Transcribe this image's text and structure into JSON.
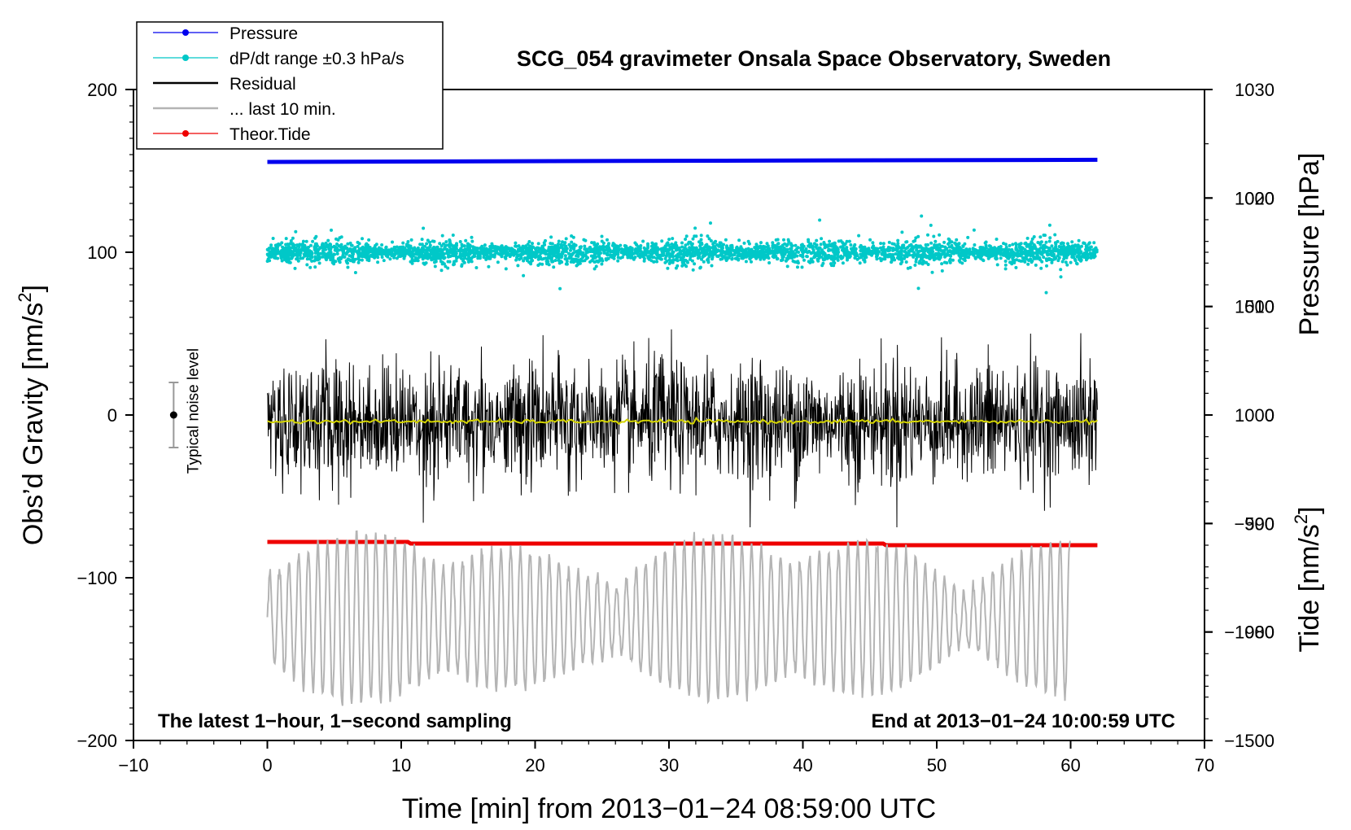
{
  "chart_data": {
    "type": "line",
    "title": "SCG_054 gravimeter Onsala Space Observatory, Sweden",
    "xlabel": "Time [min] from 2013−01−24 08:59:00 UTC",
    "ylabel_left_main": "Obs’d Gravity [nm/s",
    "ylabel_left_sup": "2",
    "ylabel_left_end": "]",
    "ylabel_right_pressure": "Pressure [hPa]",
    "ylabel_right_tide_main": "Tide [nm/s",
    "ylabel_right_tide_sup": "2",
    "ylabel_right_tide_end": "]",
    "xlim": [
      -10,
      70
    ],
    "ylim": [
      -200,
      200
    ],
    "pressure_axis": {
      "range": [
        970,
        1030
      ],
      "ticks": [
        980,
        990,
        1000,
        1010,
        1020,
        1030
      ]
    },
    "tide_axis": {
      "range": [
        -1500,
        1500
      ],
      "ticks": [
        -1500,
        -1000,
        -500,
        0,
        500,
        1000
      ]
    },
    "x_ticks": [
      "−10",
      "0",
      "10",
      "20",
      "30",
      "40",
      "50",
      "60",
      "70"
    ],
    "x_tick_values": [
      -10,
      0,
      10,
      20,
      30,
      40,
      50,
      60,
      70
    ],
    "y_ticks": [
      "200",
      "100",
      "0",
      "−100",
      "−200"
    ],
    "y_tick_values": [
      200,
      100,
      0,
      -100,
      -200
    ],
    "pressure_tick_labels": [
      "980",
      "990",
      "1000",
      "1010",
      "1020",
      "1030"
    ],
    "tide_tick_labels": [
      "−1500",
      "−1000",
      "−500",
      "0",
      "500",
      "1000"
    ],
    "legend": [
      {
        "label": "Pressure",
        "color": "#0000ee",
        "style": "line-dot"
      },
      {
        "label": "dP/dt range ±0.3 hPa/s",
        "color": "#00c8c8",
        "style": "line-dot"
      },
      {
        "label": "Residual",
        "color": "#000000",
        "style": "line"
      },
      {
        "label": "... last 10 min.",
        "color": "#b4b4b4",
        "style": "line"
      },
      {
        "label": "Theor.Tide",
        "color": "#ee0000",
        "style": "line-dot"
      }
    ],
    "series": [
      {
        "name": "Pressure",
        "axis": "left",
        "x_range": [
          0,
          62
        ],
        "values": [
          {
            "x": 0,
            "y": 155.5
          },
          {
            "x": 30,
            "y": 156.2
          },
          {
            "x": 62,
            "y": 156.8
          }
        ],
        "color": "#0000ee"
      },
      {
        "name": "dP/dt",
        "axis": "left",
        "x_range": [
          0,
          62
        ],
        "center": 100,
        "spread": 4,
        "color": "#00c8c8"
      },
      {
        "name": "Residual",
        "axis": "left",
        "x_range": [
          0,
          62
        ],
        "center": -4,
        "amplitude_max": 65,
        "color": "#000000"
      },
      {
        "name": "Residual smoothed",
        "axis": "left",
        "x_range": [
          0,
          62
        ],
        "center": -4,
        "color": "#d4d400"
      },
      {
        "name": "Theor.Tide",
        "axis": "left",
        "values": [
          {
            "x": 0,
            "y": -78
          },
          {
            "x": 10.5,
            "y": -78
          },
          {
            "x": 10.7,
            "y": -79
          },
          {
            "x": 46,
            "y": -79
          },
          {
            "x": 46.2,
            "y": -80
          },
          {
            "x": 62,
            "y": -80
          }
        ],
        "color": "#ee0000"
      },
      {
        "name": "last 10 min.",
        "axis": "left",
        "x_range": [
          0,
          60
        ],
        "center": -125,
        "amplitude_max": 60,
        "color": "#b4b4b4"
      }
    ],
    "noise_bar": {
      "label": "Typical noise level",
      "x": -7,
      "center": 0,
      "range": [
        -20,
        20
      ]
    },
    "annotations": {
      "left": "The latest 1−hour, 1−second sampling",
      "right": "End at 2013−01−24 10:00:59 UTC"
    }
  }
}
